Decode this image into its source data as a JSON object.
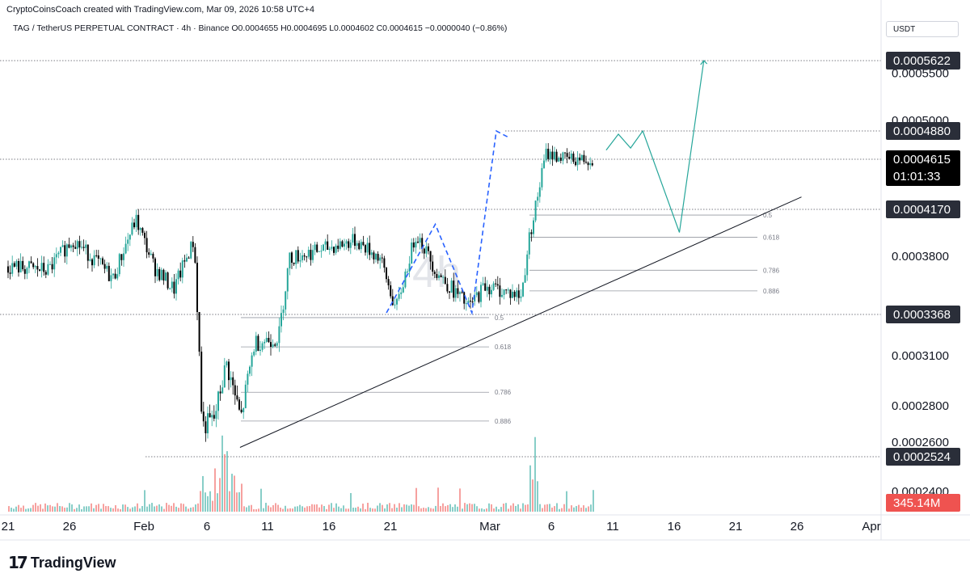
{
  "header": {
    "attribution": "CryptoCoinsCoach created with TradingView.com, Mar 09, 2026 10:58 UTC+4",
    "legend": "TAG / TetherUS PERPETUAL CONTRACT · 4h · Binance  O0.0004655  H0.0004695  L0.0004602  C0.0004615  −0.0000040 (−0.86%)"
  },
  "currency_label": "USDT",
  "brand": {
    "icon": "17",
    "name": "TradingView"
  },
  "chart_data": {
    "type": "candlestick",
    "symbol": "TAG / TetherUS PERPETUAL CONTRACT",
    "interval": "4h",
    "exchange": "Binance",
    "watermark": "4h",
    "ohlc": {
      "open": 0.0004655,
      "high": 0.0004695,
      "low": 0.0004602,
      "close": 0.0004615,
      "change": -4e-06,
      "change_pct": -0.86
    },
    "y_axis_ticks": [
      "0.0005500",
      "0.0005000",
      "0.0003800",
      "0.0003100",
      "0.0002800",
      "0.0002600",
      "0.0002400"
    ],
    "x_axis_ticks": [
      "21",
      "26",
      "Feb",
      "6",
      "11",
      "16",
      "21",
      "Mar",
      "6",
      "11",
      "16",
      "21",
      "26",
      "Apr"
    ],
    "price_labels": [
      {
        "text": "0.0005622",
        "kind": "level"
      },
      {
        "text": "0.0004880",
        "kind": "level"
      },
      {
        "text": "0.0004615",
        "sub": "01:01:33",
        "kind": "last"
      },
      {
        "text": "0.0004170",
        "kind": "level"
      },
      {
        "text": "0.0003368",
        "kind": "level"
      },
      {
        "text": "0.0002524",
        "kind": "level"
      },
      {
        "text": "345.14M",
        "kind": "volume"
      }
    ],
    "horizontal_levels": [
      0.0005622,
      0.000488,
      0.0004615,
      0.000417,
      0.0003368,
      0.0002524
    ],
    "fib_retracement_1": {
      "high": 0.000417,
      "low": 0.0002524,
      "labels": [
        "0.5",
        "0.618",
        "0.786",
        "0.886"
      ]
    },
    "fib_retracement_2": {
      "high": 0.000488,
      "low": 0.0003368,
      "labels": [
        "0.5",
        "0.618",
        "0.786",
        "0.886"
      ]
    },
    "trendline": {
      "from": {
        "date": "Feb 8",
        "price": 0.000257
      },
      "to": {
        "date": "Mar 26",
        "price": 0.000428
      }
    },
    "projection_path": [
      {
        "date": "Mar 10",
        "price": 0.00047
      },
      {
        "date": "Mar 11",
        "price": 0.000485
      },
      {
        "date": "Mar 12",
        "price": 0.000472
      },
      {
        "date": "Mar 13",
        "price": 0.000488
      },
      {
        "date": "Mar 16",
        "price": 0.0003985
      },
      {
        "date": "Mar 18",
        "price": 0.0005622
      }
    ],
    "prior_move_path": [
      {
        "date": "Feb 20",
        "price": 0.000338
      },
      {
        "date": "Feb 24",
        "price": 0.000405
      },
      {
        "date": "Feb 27",
        "price": 0.000338
      },
      {
        "date": "Mar 1",
        "price": 0.000488
      },
      {
        "date": "Mar 2",
        "price": 0.000482
      }
    ],
    "colors": {
      "up": "#26a69a",
      "down": "#000000",
      "volume_up": "#26a69a",
      "volume_down": "#ef5350",
      "projection": "#26a69a",
      "prior_move": "#2962ff",
      "trendline": "#131722"
    }
  }
}
